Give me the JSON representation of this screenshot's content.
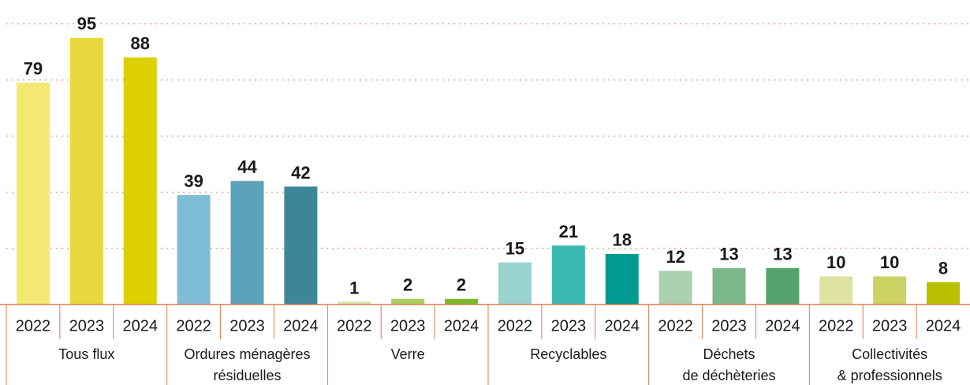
{
  "chart_data": {
    "type": "bar",
    "ylim": [
      0,
      100
    ],
    "yticks": [
      20,
      40,
      60,
      80,
      100
    ],
    "grid": true,
    "groups": [
      {
        "label": [
          "Tous flux"
        ],
        "categories": [
          "2022",
          "2023",
          "2024"
        ],
        "values": [
          79,
          95,
          88
        ],
        "colors": [
          "#f2e872",
          "#e8da3e",
          "#ddd000"
        ]
      },
      {
        "label": [
          "Ordures ménagères",
          "résiduelles"
        ],
        "categories": [
          "2022",
          "2023",
          "2024"
        ],
        "values": [
          39,
          44,
          42
        ],
        "colors": [
          "#7fbcd6",
          "#5ba1b7",
          "#3d8698"
        ]
      },
      {
        "label": [
          "Verre"
        ],
        "categories": [
          "2022",
          "2023",
          "2024"
        ],
        "values": [
          1,
          2,
          2
        ],
        "colors": [
          "#d6e4a8",
          "#a9cf60",
          "#7cba2c"
        ]
      },
      {
        "label": [
          "Recyclables"
        ],
        "categories": [
          "2022",
          "2023",
          "2024"
        ],
        "values": [
          15,
          21,
          18
        ],
        "colors": [
          "#9bd3cf",
          "#3cb8b2",
          "#009a90"
        ]
      },
      {
        "label": [
          "Déchets",
          "de déchèteries"
        ],
        "categories": [
          "2022",
          "2023",
          "2024"
        ],
        "values": [
          12,
          13,
          13
        ],
        "colors": [
          "#abd0b0",
          "#7db78a",
          "#56a26d"
        ]
      },
      {
        "label": [
          "Collectivités",
          "& professionnels"
        ],
        "categories": [
          "2022",
          "2023",
          "2024"
        ],
        "values": [
          10,
          10,
          8
        ],
        "colors": [
          "#dfe3a2",
          "#ccd264",
          "#b8c000"
        ]
      }
    ]
  }
}
